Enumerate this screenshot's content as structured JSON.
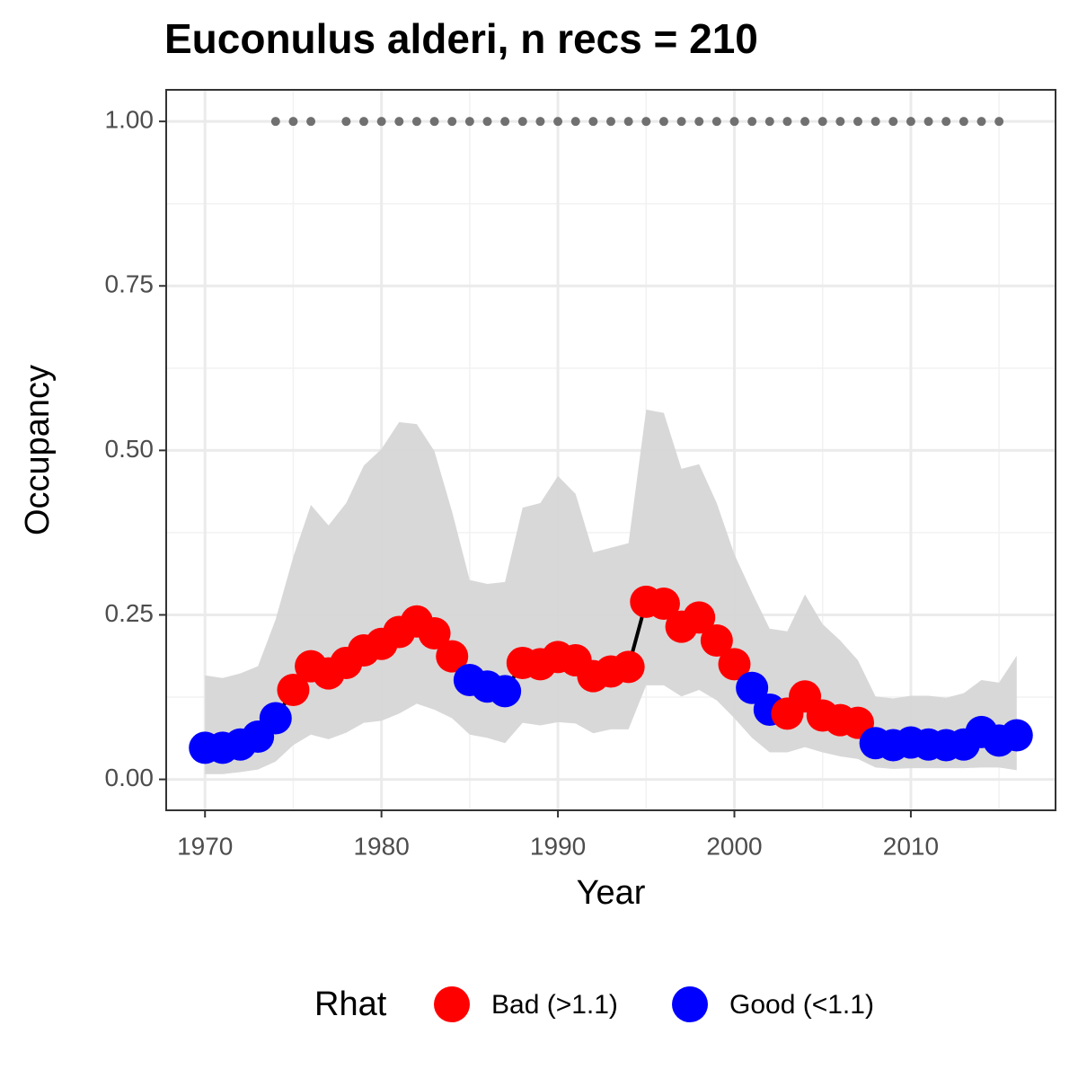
{
  "chart_data": {
    "type": "line",
    "title": "Euconulus alderi, n recs = 210",
    "x_label": "Year",
    "y_label": "Occupancy",
    "x": [
      1970,
      1971,
      1972,
      1973,
      1974,
      1975,
      1976,
      1977,
      1978,
      1979,
      1980,
      1981,
      1982,
      1983,
      1984,
      1985,
      1986,
      1987,
      1988,
      1989,
      1990,
      1991,
      1992,
      1993,
      1994,
      1995,
      1996,
      1997,
      1998,
      1999,
      2000,
      2001,
      2002,
      2003,
      2004,
      2005,
      2006,
      2007,
      2008,
      2009,
      2010,
      2011,
      2012,
      2013,
      2014,
      2015,
      2016
    ],
    "values": [
      0.048,
      0.048,
      0.053,
      0.065,
      0.093,
      0.136,
      0.172,
      0.161,
      0.177,
      0.196,
      0.206,
      0.224,
      0.24,
      0.222,
      0.187,
      0.151,
      0.141,
      0.134,
      0.177,
      0.175,
      0.186,
      0.181,
      0.157,
      0.164,
      0.171,
      0.27,
      0.267,
      0.232,
      0.246,
      0.211,
      0.175,
      0.139,
      0.106,
      0.1,
      0.126,
      0.097,
      0.09,
      0.086,
      0.055,
      0.052,
      0.056,
      0.053,
      0.052,
      0.053,
      0.072,
      0.059,
      0.067
    ],
    "lower": [
      0.008,
      0.008,
      0.011,
      0.015,
      0.027,
      0.052,
      0.068,
      0.061,
      0.071,
      0.086,
      0.089,
      0.1,
      0.115,
      0.106,
      0.093,
      0.068,
      0.063,
      0.055,
      0.086,
      0.082,
      0.087,
      0.085,
      0.07,
      0.076,
      0.076,
      0.143,
      0.143,
      0.126,
      0.136,
      0.12,
      0.093,
      0.063,
      0.041,
      0.041,
      0.049,
      0.041,
      0.035,
      0.031,
      0.018,
      0.016,
      0.017,
      0.017,
      0.017,
      0.017,
      0.018,
      0.018,
      0.014
    ],
    "upper": [
      0.158,
      0.154,
      0.161,
      0.172,
      0.243,
      0.338,
      0.417,
      0.386,
      0.42,
      0.477,
      0.502,
      0.543,
      0.54,
      0.499,
      0.407,
      0.303,
      0.297,
      0.3,
      0.413,
      0.42,
      0.461,
      0.434,
      0.345,
      0.352,
      0.359,
      0.562,
      0.557,
      0.472,
      0.479,
      0.42,
      0.342,
      0.284,
      0.229,
      0.225,
      0.281,
      0.236,
      0.211,
      0.181,
      0.126,
      0.123,
      0.127,
      0.127,
      0.124,
      0.131,
      0.151,
      0.147,
      0.188
    ],
    "point_group": [
      1,
      1,
      1,
      1,
      1,
      0,
      0,
      0,
      0,
      0,
      0,
      0,
      0,
      0,
      0,
      1,
      1,
      1,
      0,
      0,
      0,
      0,
      0,
      0,
      0,
      0,
      0,
      0,
      0,
      0,
      0,
      1,
      1,
      0,
      0,
      0,
      0,
      0,
      1,
      1,
      1,
      1,
      1,
      1,
      1,
      1,
      1
    ],
    "line_color": "#000000",
    "band_color": "#d6d6d6",
    "legend_title": "Rhat",
    "groups": [
      {
        "name": "Bad (>1.1)",
        "color": "#ff0000"
      },
      {
        "name": "Good (<1.1)",
        "color": "#0000ff"
      }
    ],
    "records": {
      "color": "#707070",
      "x": [
        1974,
        1975,
        1976,
        1978,
        1979,
        1980,
        1981,
        1982,
        1983,
        1984,
        1985,
        1986,
        1987,
        1988,
        1989,
        1990,
        1991,
        1992,
        1993,
        1994,
        1995,
        1996,
        1997,
        1998,
        1999,
        2000,
        2001,
        2002,
        2003,
        2004,
        2005,
        2006,
        2007,
        2008,
        2009,
        2010,
        2011,
        2012,
        2013,
        2014,
        2015
      ],
      "y": [
        1,
        1,
        1,
        1,
        1,
        1,
        1,
        1,
        1,
        1,
        1,
        1,
        1,
        1,
        1,
        1,
        1,
        1,
        1,
        1,
        1,
        1,
        1,
        1,
        1,
        1,
        1,
        1,
        1,
        1,
        1,
        1,
        1,
        1,
        1,
        1,
        1,
        1,
        1,
        1,
        1
      ]
    },
    "xlim": [
      1967.8,
      2018.2
    ],
    "ylim": [
      -0.047,
      1.048
    ],
    "xticks": [
      1970,
      1980,
      1990,
      2000,
      2010
    ],
    "yticks": [
      {
        "value": 0,
        "label": "0.00"
      },
      {
        "value": 0.25,
        "label": "0.25"
      },
      {
        "value": 0.5,
        "label": "0.50"
      },
      {
        "value": 0.75,
        "label": "0.75"
      },
      {
        "value": 1,
        "label": "1.00"
      }
    ],
    "xminor": [
      1975,
      1985,
      1995,
      2005,
      2015
    ],
    "yminor": [
      0.125,
      0.375,
      0.625,
      0.875
    ],
    "grid": true
  }
}
